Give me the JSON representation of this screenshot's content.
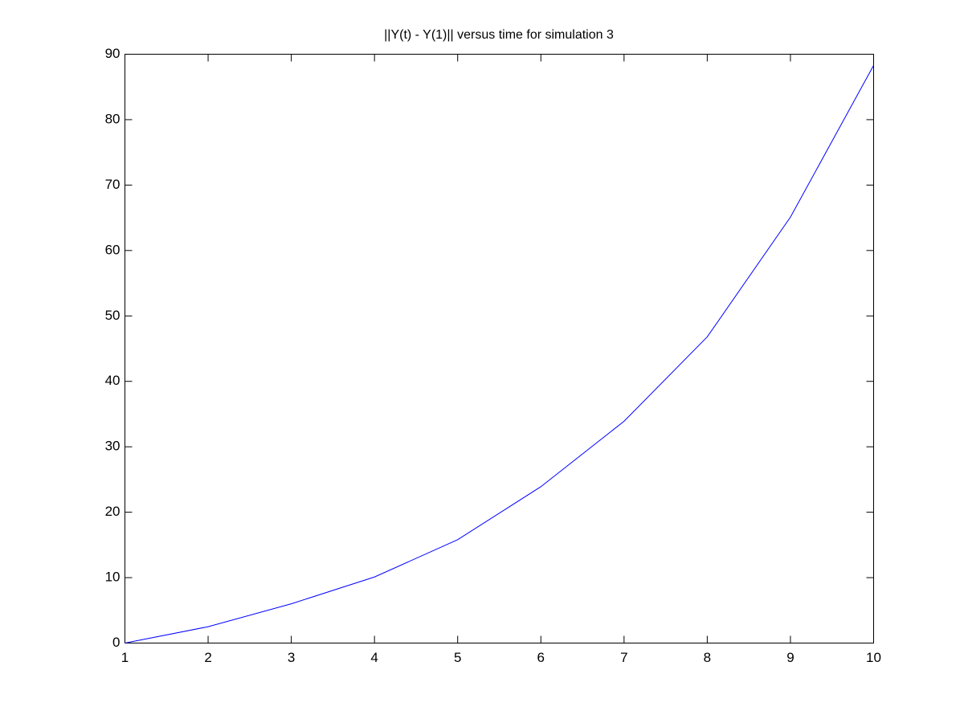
{
  "chart_data": {
    "type": "line",
    "title": "||Y(t) - Y(1)|| versus time for simulation 3",
    "x": [
      1,
      2,
      3,
      4,
      5,
      6,
      7,
      8,
      9,
      10
    ],
    "series": [
      {
        "color": "#0000ff",
        "values": [
          0,
          2.5,
          6.0,
          10.1,
          15.8,
          23.9,
          33.9,
          46.8,
          65.1,
          88.3
        ]
      }
    ],
    "xlim": [
      1,
      10
    ],
    "xticks": [
      1,
      2,
      3,
      4,
      5,
      6,
      7,
      8,
      9,
      10
    ],
    "ylim": [
      0,
      90
    ],
    "yticks": [
      0,
      10,
      20,
      30,
      40,
      50,
      60,
      70,
      80,
      90
    ],
    "grid": false
  }
}
